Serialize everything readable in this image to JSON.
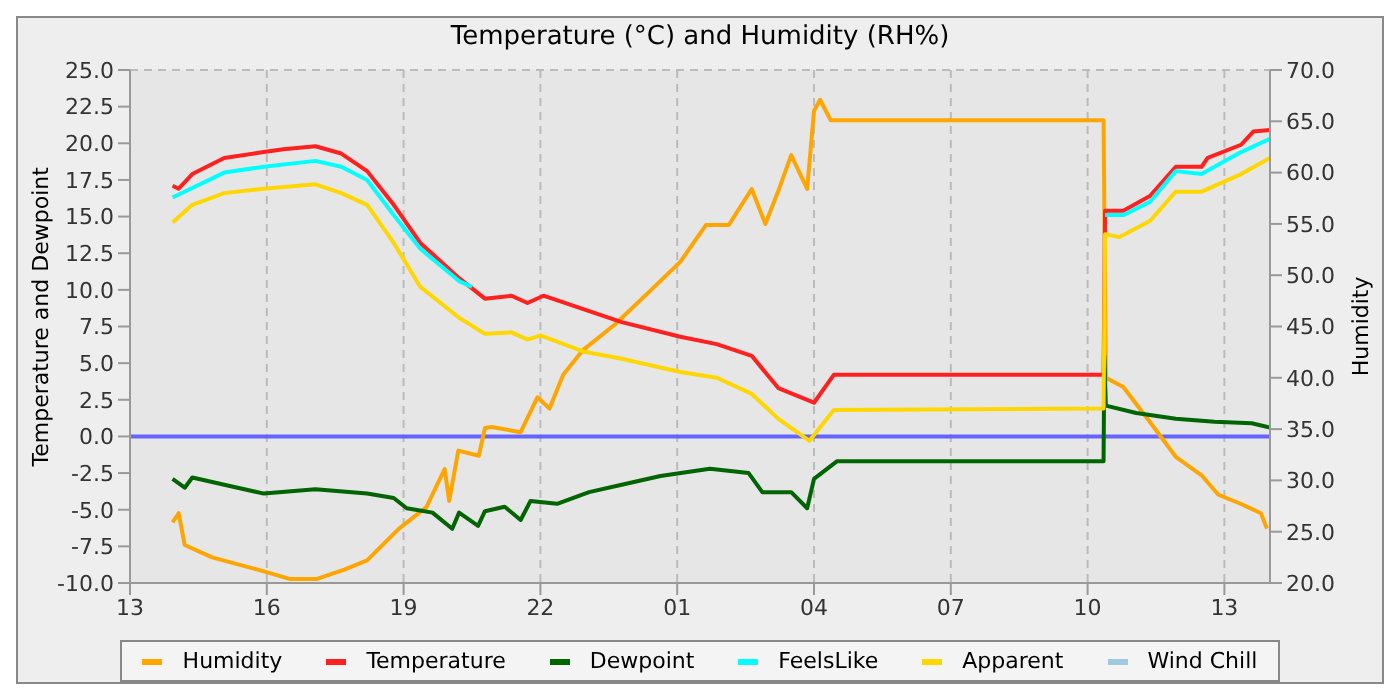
{
  "chart_data": {
    "type": "line",
    "title": "Temperature (°C) and Humidity (RH%)",
    "ylabel": "Temperature and Dewpoint",
    "y2label": "Humidity",
    "xlim": [
      "--01-01T13:00",
      "--01-02T14:00"
    ],
    "xticks": [
      {
        "value": "--01-01T13:00",
        "label": "13"
      },
      {
        "value": "--01-01T16:00",
        "label": "16"
      },
      {
        "value": "--01-01T19:00",
        "label": "19"
      },
      {
        "value": "--01-01T22:00",
        "label": "22"
      },
      {
        "value": "--01-02T01:00",
        "label": "01"
      },
      {
        "value": "--01-02T04:00",
        "label": "04"
      },
      {
        "value": "--01-02T07:00",
        "label": "07"
      },
      {
        "value": "--01-02T10:00",
        "label": "10"
      },
      {
        "value": "--01-02T13:00",
        "label": "13"
      }
    ],
    "ylim": [
      -10,
      25
    ],
    "yticks": [
      {
        "value": -10,
        "label": "-10.0"
      },
      {
        "value": -7.5,
        "label": "-7.5"
      },
      {
        "value": -5,
        "label": "-5.0"
      },
      {
        "value": -2.5,
        "label": "-2.5"
      },
      {
        "value": 0,
        "label": "0.0"
      },
      {
        "value": 2.5,
        "label": "2.5"
      },
      {
        "value": 5,
        "label": "5.0"
      },
      {
        "value": 7.5,
        "label": "7.5"
      },
      {
        "value": 10,
        "label": "10.0"
      },
      {
        "value": 12.5,
        "label": "12.5"
      },
      {
        "value": 15,
        "label": "15.0"
      },
      {
        "value": 17.5,
        "label": "17.5"
      },
      {
        "value": 20,
        "label": "20.0"
      },
      {
        "value": 22.5,
        "label": "22.5"
      },
      {
        "value": 25,
        "label": "25.0"
      }
    ],
    "y2lim": [
      20,
      70
    ],
    "y2ticks": [
      {
        "value": 20,
        "label": "20.0"
      },
      {
        "value": 25,
        "label": "25.0"
      },
      {
        "value": 30,
        "label": "30.0"
      },
      {
        "value": 35,
        "label": "35.0"
      },
      {
        "value": 40,
        "label": "40.0"
      },
      {
        "value": 45,
        "label": "45.0"
      },
      {
        "value": 50,
        "label": "50.0"
      },
      {
        "value": 55,
        "label": "55.0"
      },
      {
        "value": 60,
        "label": "60.0"
      },
      {
        "value": 65,
        "label": "65.0"
      },
      {
        "value": 70,
        "label": "70.0"
      }
    ],
    "grid": true,
    "legend": "bottom",
    "line_style": "solid",
    "ref_lines": [
      {
        "axis": "y",
        "value": 0,
        "color": "#6464ff"
      }
    ],
    "series": [
      {
        "name": "Humidity",
        "color": "#ffa500",
        "axis": "y2",
        "x": [
          "--01-01T13:56",
          "--01-01T14:04",
          "--01-01T14:12",
          "--01-01T14:48",
          "--01-01T15:48",
          "--01-01T16:30",
          "--01-01T17:06",
          "--01-01T17:42",
          "--01-01T18:12",
          "--01-01T18:54",
          "--01-01T19:30",
          "--01-01T19:54",
          "--01-01T20:00",
          "--01-01T20:12",
          "--01-01T20:39",
          "--01-01T20:47",
          "--01-01T20:56",
          "--01-01T21:34",
          "--01-01T21:56",
          "--01-01T22:12",
          "--01-01T22:30",
          "--01-01T22:56",
          "--01-01T23:38",
          "--01-02T00:22",
          "--01-02T01:04",
          "--01-02T01:38",
          "--01-02T02:08",
          "--01-02T02:38",
          "--01-02T02:56",
          "--01-02T03:13",
          "--01-02T03:30",
          "--01-02T03:51",
          "--01-02T04:00",
          "--01-02T04:08",
          "--01-02T04:22",
          "--01-02T10:21",
          "--01-02T10:24",
          "--01-02T10:47",
          "--01-02T11:22",
          "--01-02T11:56",
          "--01-02T12:30",
          "--01-02T12:52",
          "--01-02T13:22",
          "--01-02T13:48",
          "--01-02T13:56"
        ],
        "values": [
          25.9,
          26.8,
          23.7,
          22.5,
          21.3,
          20.4,
          20.4,
          21.3,
          22.2,
          25.3,
          27.4,
          31.1,
          28.0,
          32.9,
          32.4,
          35.1,
          35.2,
          34.7,
          38.1,
          37.0,
          40.3,
          42.7,
          45.2,
          48.3,
          51.3,
          54.9,
          54.9,
          58.4,
          55.0,
          58.2,
          61.7,
          58.4,
          66.0,
          67.1,
          65.1,
          65.1,
          40.0,
          39.1,
          35.7,
          32.3,
          30.5,
          28.6,
          27.7,
          26.8,
          25.3
        ]
      },
      {
        "name": "Temperature",
        "color": "#ff2020",
        "x": [
          "--01-01T13:56",
          "--01-01T14:04",
          "--01-01T14:22",
          "--01-01T15:04",
          "--01-01T15:56",
          "--01-01T16:22",
          "--01-01T17:04",
          "--01-01T17:38",
          "--01-01T18:12",
          "--01-01T18:47",
          "--01-01T19:22",
          "--01-01T20:13",
          "--01-01T20:47",
          "--01-01T21:22",
          "--01-01T21:43",
          "--01-01T22:04",
          "--01-01T23:47",
          "--01-02T01:04",
          "--01-02T01:52",
          "--01-02T02:38",
          "--01-02T03:13",
          "--01-02T04:00",
          "--01-02T04:26",
          "--01-02T10:21",
          "--01-02T10:23",
          "--01-02T10:47",
          "--01-02T11:22",
          "--01-02T11:56",
          "--01-02T12:30",
          "--01-02T12:38",
          "--01-02T13:22",
          "--01-02T13:38",
          "--01-02T14:00"
        ],
        "values": [
          17.1,
          16.9,
          17.9,
          19.0,
          19.4,
          19.6,
          19.8,
          19.3,
          18.1,
          15.8,
          13.2,
          10.8,
          9.4,
          9.6,
          9.1,
          9.6,
          7.8,
          6.8,
          6.3,
          5.5,
          3.3,
          2.3,
          4.2,
          4.2,
          15.4,
          15.4,
          16.4,
          18.4,
          18.4,
          19.0,
          19.9,
          20.8,
          20.9
        ]
      },
      {
        "name": "Dewpoint",
        "color": "#006400",
        "x": [
          "--01-01T13:56",
          "--01-01T14:12",
          "--01-01T14:22",
          "--01-01T15:04",
          "--01-01T15:56",
          "--01-01T17:04",
          "--01-01T18:12",
          "--01-01T18:47",
          "--01-01T19:04",
          "--01-01T19:38",
          "--01-01T20:04",
          "--01-01T20:13",
          "--01-01T20:38",
          "--01-01T20:47",
          "--01-01T21:13",
          "--01-01T21:34",
          "--01-01T21:47",
          "--01-01T22:22",
          "--01-01T23:04",
          "--01-01T23:47",
          "--01-02T00:38",
          "--01-02T01:43",
          "--01-02T02:34",
          "--01-02T02:52",
          "--01-02T03:30",
          "--01-02T03:51",
          "--01-02T04:00",
          "--01-02T04:30",
          "--01-02T10:21",
          "--01-02T10:22",
          "--01-02T10:24",
          "--01-02T11:04",
          "--01-02T11:56",
          "--01-02T12:47",
          "--01-02T13:36",
          "--01-02T14:00"
        ],
        "values": [
          -2.9,
          -3.5,
          -2.8,
          -3.3,
          -3.9,
          -3.6,
          -3.9,
          -4.2,
          -4.9,
          -5.2,
          -6.3,
          -5.2,
          -6.1,
          -5.1,
          -4.8,
          -5.7,
          -4.4,
          -4.6,
          -3.8,
          -3.3,
          -2.7,
          -2.2,
          -2.5,
          -3.8,
          -3.8,
          -4.9,
          -2.9,
          -1.7,
          -1.7,
          5.5,
          2.1,
          1.6,
          1.2,
          1.0,
          0.9,
          0.6
        ]
      },
      {
        "name": "FeelsLike",
        "color": "#00ffff",
        "x": [
          "--01-01T13:56",
          "--01-01T15:04",
          "--01-01T15:56",
          "--01-01T17:04",
          "--01-01T17:38",
          "--01-01T18:12",
          "--01-01T18:47",
          "--01-01T19:22",
          "--01-01T20:13",
          "--01-01T20:30",
          "--01-02T10:22",
          "--01-02T10:23",
          "--01-02T10:47",
          "--01-02T11:22",
          "--01-02T11:56",
          "--01-02T12:30",
          "--01-02T13:22",
          "--01-02T14:00"
        ],
        "values": [
          16.3,
          18.0,
          18.4,
          18.8,
          18.4,
          17.5,
          15.1,
          12.8,
          10.6,
          10.2,
          null,
          15.1,
          15.1,
          16.0,
          18.1,
          17.9,
          19.4,
          20.3
        ]
      },
      {
        "name": "Apparent",
        "color": "#ffd700",
        "x": [
          "--01-01T13:56",
          "--01-01T14:22",
          "--01-01T15:04",
          "--01-01T15:56",
          "--01-01T17:04",
          "--01-01T17:38",
          "--01-01T18:12",
          "--01-01T18:47",
          "--01-01T19:22",
          "--01-01T20:13",
          "--01-01T20:47",
          "--01-01T21:22",
          "--01-01T21:43",
          "--01-01T22:00",
          "--01-01T22:56",
          "--01-01T23:47",
          "--01-02T01:04",
          "--01-02T01:52",
          "--01-02T02:38",
          "--01-02T03:13",
          "--01-02T03:54",
          "--01-02T04:26",
          "--01-02T10:21",
          "--01-02T10:23",
          "--01-02T10:42",
          "--01-02T11:22",
          "--01-02T11:56",
          "--01-02T12:30",
          "--01-02T13:22",
          "--01-02T14:00"
        ],
        "values": [
          14.6,
          15.8,
          16.6,
          16.9,
          17.2,
          16.6,
          15.8,
          13.2,
          10.2,
          8.1,
          7.0,
          7.1,
          6.6,
          6.9,
          5.8,
          5.3,
          4.4,
          4.0,
          2.9,
          1.2,
          -0.3,
          1.8,
          1.9,
          13.8,
          13.6,
          14.7,
          16.7,
          16.7,
          17.9,
          19.0
        ]
      },
      {
        "name": "Wind Chill",
        "color": "#a0c8e0"
      }
    ]
  }
}
